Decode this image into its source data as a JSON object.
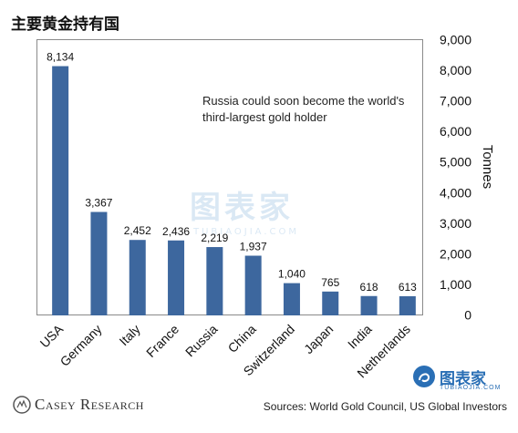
{
  "title": "主要黄金持有国",
  "annotation": "Russia could soon become the world's third-largest gold holder",
  "source": "Sources: World Gold Council, US Global Investors",
  "watermark": {
    "cn": "图表家",
    "en": "TUBIAOJIA.COM"
  },
  "brand_logo": {
    "cn": "图表家",
    "en": "TUBIAOJIA.COM"
  },
  "company_logo": "Casey Research",
  "colors": {
    "bar": "#3d679e",
    "frame": "#8a8a8a",
    "text": "#111111"
  },
  "chart_data": {
    "type": "bar",
    "categories": [
      "USA",
      "Germany",
      "Italy",
      "France",
      "Russia",
      "China",
      "Switzerland",
      "Japan",
      "India",
      "Netherlands"
    ],
    "values": [
      8134,
      3367,
      2452,
      2436,
      2219,
      1937,
      1040,
      765,
      618,
      613
    ],
    "value_labels": [
      "8,134",
      "3,367",
      "2,452",
      "2,436",
      "2,219",
      "1,937",
      "1,040",
      "765",
      "618",
      "613"
    ],
    "ylabel": "Tonnes",
    "ylim": [
      0,
      9000
    ],
    "y_ticks": [
      0,
      1000,
      2000,
      3000,
      4000,
      5000,
      6000,
      7000,
      8000,
      9000
    ],
    "y_tick_labels": [
      "0",
      "1,000",
      "2,000",
      "3,000",
      "4,000",
      "5,000",
      "6,000",
      "7,000",
      "8,000",
      "9,000"
    ],
    "y_axis_side": "right",
    "grid": false,
    "legend": "none"
  }
}
